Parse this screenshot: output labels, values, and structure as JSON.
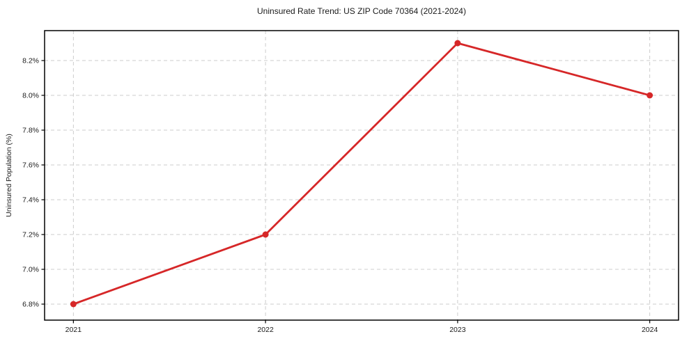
{
  "chart_data": {
    "type": "line",
    "title": "Uninsured Rate Trend: US ZIP Code 70364 (2021-2024)",
    "xlabel": "",
    "ylabel": "Uninsured Population (%)",
    "x": [
      2021,
      2022,
      2023,
      2024
    ],
    "categories": [
      "2021",
      "2022",
      "2023",
      "2024"
    ],
    "series": [
      {
        "name": "Uninsured Population (%)",
        "values": [
          6.8,
          7.2,
          8.3,
          8.0
        ],
        "color": "#d62728",
        "marker": "circle"
      }
    ],
    "yticks": [
      6.8,
      7.0,
      7.2,
      7.4,
      7.6,
      7.8,
      8.0,
      8.2
    ],
    "ytick_labels": [
      "6.8%",
      "7.0%",
      "7.2%",
      "7.4%",
      "7.6%",
      "7.8%",
      "8.0%",
      "8.2%"
    ],
    "ylim": [
      6.708,
      8.372
    ],
    "xlim": [
      2020.85,
      2024.15
    ],
    "grid": true,
    "grid_color": "#cccccc",
    "grid_dash": "5 4",
    "axis_color": "#000000",
    "tick_color": "#1a1a1a",
    "legend": "none",
    "line_width": 2.8,
    "marker_radius": 4.5
  }
}
